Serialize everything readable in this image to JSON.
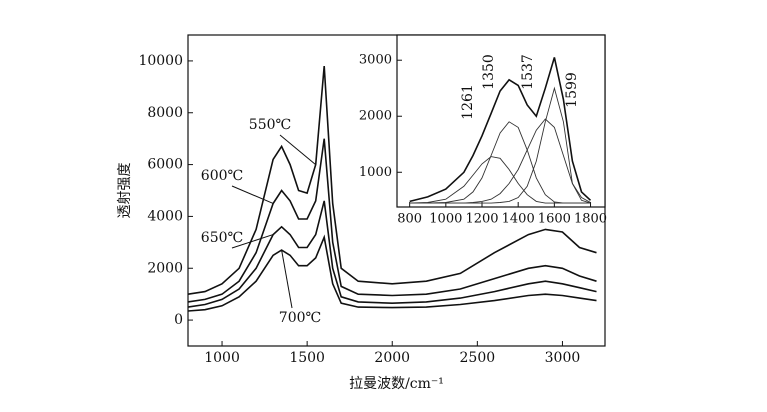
{
  "chart_data": [
    {
      "type": "line",
      "xlabel": "拉曼波数/cm⁻¹",
      "ylabel": "透射强度",
      "xlim": [
        800,
        3250
      ],
      "ylim": [
        -1000,
        11000
      ],
      "xticks": [
        1000,
        1500,
        2000,
        2500,
        3000
      ],
      "yticks": [
        0,
        2000,
        4000,
        6000,
        8000,
        10000
      ],
      "x": [
        800,
        900,
        1000,
        1100,
        1200,
        1300,
        1350,
        1400,
        1450,
        1500,
        1550,
        1600,
        1650,
        1700,
        1800,
        2000,
        2200,
        2400,
        2600,
        2800,
        2900,
        3000,
        3100,
        3200
      ],
      "series": [
        {
          "name": "550℃",
          "color": "#111111",
          "values": [
            1000,
            1100,
            1400,
            2000,
            3500,
            6200,
            6700,
            6000,
            5000,
            4900,
            6000,
            9800,
            4500,
            2000,
            1500,
            1400,
            1500,
            1800,
            2600,
            3300,
            3500,
            3400,
            2800,
            2600
          ]
        },
        {
          "name": "600℃",
          "color": "#111111",
          "values": [
            700,
            800,
            1000,
            1500,
            2600,
            4500,
            5000,
            4600,
            3900,
            3900,
            4600,
            7000,
            3000,
            1300,
            1000,
            950,
            1000,
            1200,
            1600,
            2000,
            2100,
            2000,
            1700,
            1500
          ]
        },
        {
          "name": "650℃",
          "color": "#111111",
          "values": [
            500,
            600,
            800,
            1200,
            2000,
            3300,
            3600,
            3300,
            2800,
            2800,
            3300,
            4600,
            2000,
            900,
            700,
            650,
            700,
            850,
            1100,
            1400,
            1500,
            1400,
            1250,
            1100
          ]
        },
        {
          "name": "700℃",
          "color": "#111111",
          "values": [
            350,
            400,
            550,
            900,
            1500,
            2500,
            2700,
            2500,
            2100,
            2100,
            2400,
            3200,
            1400,
            650,
            500,
            480,
            500,
            600,
            750,
            950,
            1000,
            950,
            850,
            750
          ]
        }
      ]
    },
    {
      "type": "line",
      "xlim": [
        730,
        1880
      ],
      "ylim": [
        380,
        3450
      ],
      "xticks": [
        800,
        1000,
        1200,
        1400,
        1600,
        1800
      ],
      "yticks": [
        1000,
        2000,
        3000
      ],
      "x": [
        800,
        900,
        1000,
        1100,
        1150,
        1200,
        1250,
        1300,
        1350,
        1400,
        1450,
        1500,
        1550,
        1600,
        1650,
        1700,
        1750,
        1800
      ],
      "series": [
        {
          "color": "#111111",
          "values": [
            480,
            560,
            700,
            1000,
            1300,
            1650,
            2050,
            2450,
            2650,
            2550,
            2200,
            2000,
            2500,
            3050,
            2300,
            1200,
            650,
            500
          ]
        },
        {
          "name": "1261",
          "color": "#333333",
          "values": [
            450,
            460,
            520,
            750,
            950,
            1150,
            1280,
            1250,
            1050,
            800,
            600,
            480,
            450,
            450,
            450,
            450,
            450,
            450
          ]
        },
        {
          "name": "1350",
          "color": "#333333",
          "values": [
            450,
            450,
            460,
            520,
            650,
            900,
            1300,
            1700,
            1900,
            1800,
            1400,
            900,
            600,
            470,
            450,
            450,
            450,
            450
          ]
        },
        {
          "name": "1537",
          "color": "#333333",
          "values": [
            450,
            450,
            450,
            450,
            460,
            480,
            520,
            620,
            800,
            1050,
            1400,
            1750,
            1950,
            1800,
            1300,
            800,
            550,
            460
          ]
        },
        {
          "name": "1599",
          "color": "#333333",
          "values": [
            450,
            450,
            450,
            450,
            450,
            450,
            450,
            460,
            480,
            550,
            750,
            1200,
            1900,
            2500,
            1900,
            800,
            500,
            450
          ]
        }
      ]
    }
  ]
}
